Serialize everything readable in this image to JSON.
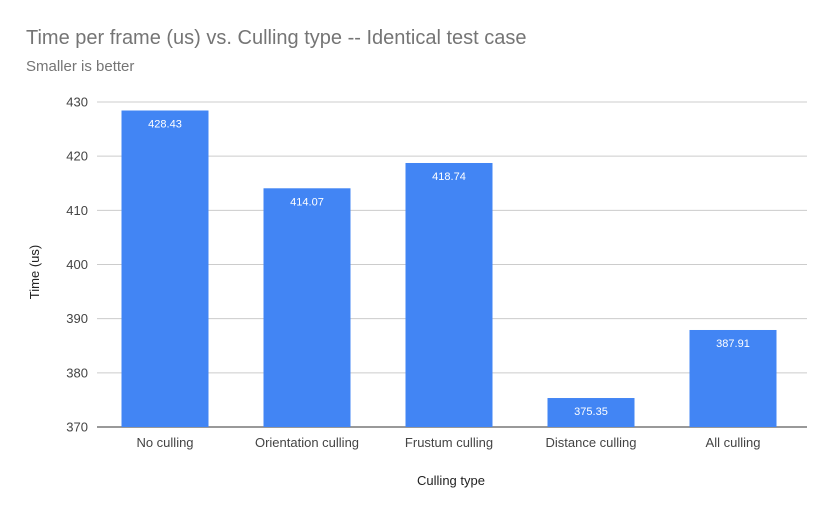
{
  "chart_data": {
    "type": "bar",
    "title": "Time per frame (us) vs. Culling type -- Identical test case",
    "subtitle": "Smaller is better",
    "xlabel": "Culling type",
    "ylabel": "Time (us)",
    "categories": [
      "No culling",
      "Orientation culling",
      "Frustum culling",
      "Distance culling",
      "All culling"
    ],
    "values": [
      428.43,
      414.07,
      418.74,
      375.35,
      387.91
    ],
    "data_labels": [
      "428.43",
      "414.07",
      "418.74",
      "375.35",
      "387.91"
    ],
    "ylim": [
      370,
      430
    ],
    "yticks": [
      370,
      380,
      390,
      400,
      410,
      420,
      430
    ],
    "grid": true,
    "legend": "none",
    "colors": {
      "bar": "#4285f4",
      "grid": "#cccccc",
      "title": "#757575"
    }
  }
}
